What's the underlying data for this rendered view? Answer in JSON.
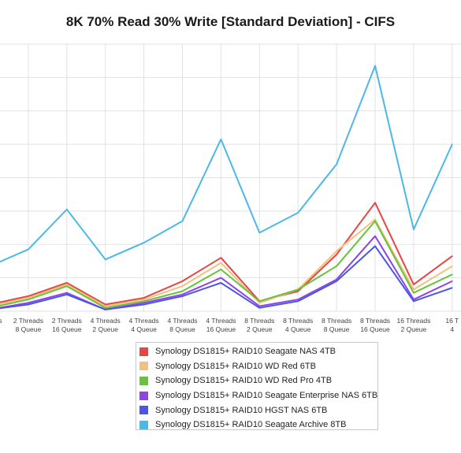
{
  "chart_data": {
    "type": "line",
    "title": "8K 70% Read 30% Write [Standard Deviation] - CIFS",
    "xlabel": "",
    "ylabel": "",
    "x_ticks": [
      {
        "line1": "Threads",
        "line2": "Queue"
      },
      {
        "line1": "2 Threads",
        "line2": "8 Queue"
      },
      {
        "line1": "2 Threads",
        "line2": "16 Queue"
      },
      {
        "line1": "4 Threads",
        "line2": "2 Queue"
      },
      {
        "line1": "4 Threads",
        "line2": "4 Queue"
      },
      {
        "line1": "4 Threads",
        "line2": "8 Queue"
      },
      {
        "line1": "4 Threads",
        "line2": "16 Queue"
      },
      {
        "line1": "8 Threads",
        "line2": "2 Queue"
      },
      {
        "line1": "8 Threads",
        "line2": "4 Queue"
      },
      {
        "line1": "8 Threads",
        "line2": "8 Queue"
      },
      {
        "line1": "8 Threads",
        "line2": "16 Queue"
      },
      {
        "line1": "16 Threads",
        "line2": "2 Queue"
      },
      {
        "line1": "16 T",
        "line2": "4"
      }
    ],
    "ylim": [
      0,
      8
    ],
    "grid": true,
    "legend_position": "bottom",
    "series": [
      {
        "name": "Synology DS1815+ RAID10 Seagate NAS 4TB",
        "color": "#e84545",
        "values": [
          0.2,
          0.45,
          0.85,
          0.2,
          0.4,
          0.9,
          1.6,
          0.3,
          0.6,
          1.7,
          3.25,
          0.8,
          1.65
        ]
      },
      {
        "name": "Synology DS1815+ RAID10 WD Red 6TB",
        "color": "#f0c27b",
        "values": [
          0.15,
          0.4,
          0.8,
          0.15,
          0.35,
          0.75,
          1.45,
          0.25,
          0.65,
          1.8,
          2.75,
          0.65,
          1.35
        ]
      },
      {
        "name": "Synology DS1815+ RAID10 WD Red Pro 4TB",
        "color": "#6ac13c",
        "values": [
          0.1,
          0.35,
          0.75,
          0.1,
          0.3,
          0.6,
          1.25,
          0.3,
          0.65,
          1.35,
          2.7,
          0.55,
          1.1
        ]
      },
      {
        "name": "Synology DS1815+ RAID10 Seagate Enterprise NAS 6TB",
        "color": "#8e44e6",
        "values": [
          0.05,
          0.25,
          0.55,
          0.05,
          0.25,
          0.5,
          1.0,
          0.15,
          0.35,
          0.95,
          2.25,
          0.35,
          0.9
        ]
      },
      {
        "name": "Synology DS1815+ RAID10 HGST NAS 6TB",
        "color": "#4a56e8",
        "values": [
          0.05,
          0.2,
          0.5,
          0.05,
          0.2,
          0.45,
          0.85,
          0.1,
          0.3,
          0.9,
          1.95,
          0.3,
          0.7
        ]
      },
      {
        "name": "Synology DS1815+ RAID10 Seagate Archive 8TB",
        "color": "#4bb8e8",
        "values": [
          1.35,
          1.85,
          3.05,
          1.55,
          2.05,
          2.7,
          5.15,
          2.35,
          2.95,
          4.4,
          7.35,
          2.45,
          5.0
        ]
      }
    ]
  }
}
